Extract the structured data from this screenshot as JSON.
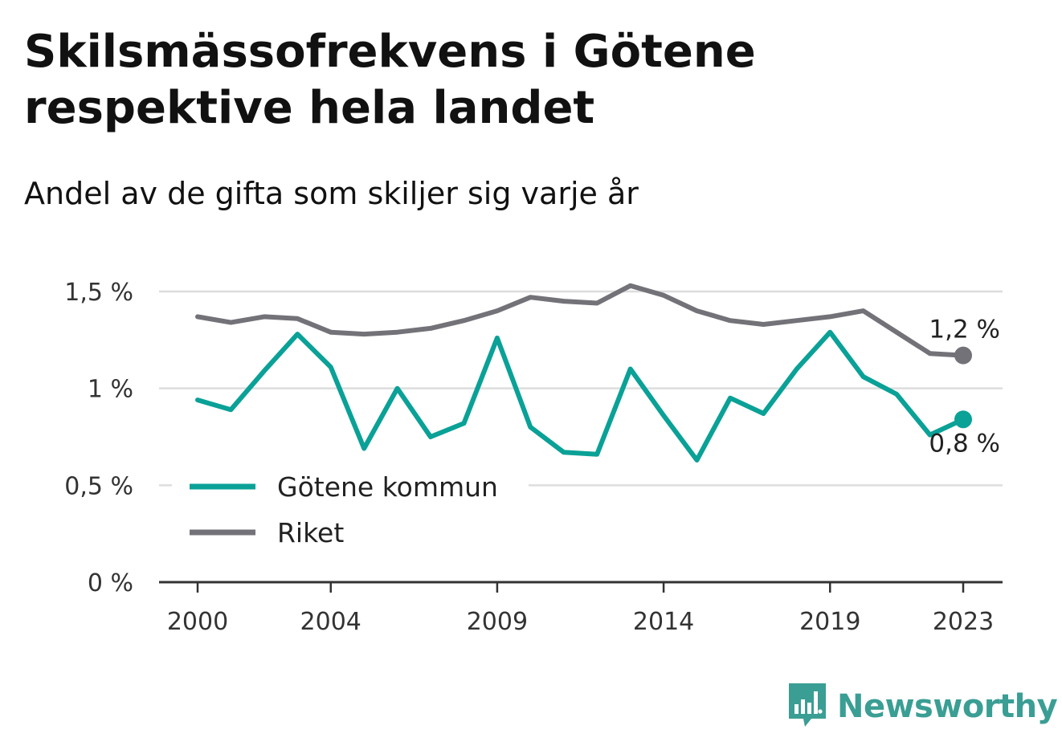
{
  "title": "Skilsmässofrekvens i Götene respektive hela landet",
  "subtitle": "Andel av de gifta som skiljer sig varje år",
  "brand": {
    "name": "Newsworthy",
    "icon": "newsworthy-logo-icon",
    "color": "#3a9e94"
  },
  "colors": {
    "gotene": "#0aa197",
    "riket": "#727278",
    "grid": "#dddddd",
    "axis": "#333333"
  },
  "chart_data": {
    "type": "line",
    "title": "Skilsmässofrekvens i Götene respektive hela landet",
    "subtitle": "Andel av de gifta som skiljer sig varje år",
    "x": [
      2000,
      2001,
      2002,
      2003,
      2004,
      2005,
      2006,
      2007,
      2008,
      2009,
      2010,
      2011,
      2012,
      2013,
      2014,
      2015,
      2016,
      2017,
      2018,
      2019,
      2020,
      2021,
      2022,
      2023
    ],
    "x_ticks": [
      "2000",
      "2004",
      "2009",
      "2014",
      "2019",
      "2023"
    ],
    "x_tick_values": [
      2000,
      2004,
      2009,
      2014,
      2019,
      2023
    ],
    "y_ticks": [
      "0 %",
      "0,5 %",
      "1 %",
      "1,5 %"
    ],
    "y_tick_values": [
      0,
      0.5,
      1.0,
      1.5
    ],
    "ylim": [
      0,
      1.5
    ],
    "grid": true,
    "legend_position": "bottom-left",
    "series": [
      {
        "name": "Götene kommun",
        "color": "#0aa197",
        "end_label": "0,8 %",
        "values": [
          0.94,
          0.89,
          1.09,
          1.28,
          1.11,
          0.69,
          1.0,
          0.75,
          0.82,
          1.26,
          0.8,
          0.67,
          0.66,
          1.1,
          0.86,
          0.63,
          0.95,
          0.87,
          1.1,
          1.29,
          1.06,
          0.97,
          0.76,
          0.84
        ]
      },
      {
        "name": "Riket",
        "color": "#727278",
        "end_label": "1,2 %",
        "values": [
          1.37,
          1.34,
          1.37,
          1.36,
          1.29,
          1.28,
          1.29,
          1.31,
          1.35,
          1.4,
          1.47,
          1.45,
          1.44,
          1.53,
          1.48,
          1.4,
          1.35,
          1.33,
          1.35,
          1.37,
          1.4,
          1.29,
          1.18,
          1.17
        ]
      }
    ]
  }
}
